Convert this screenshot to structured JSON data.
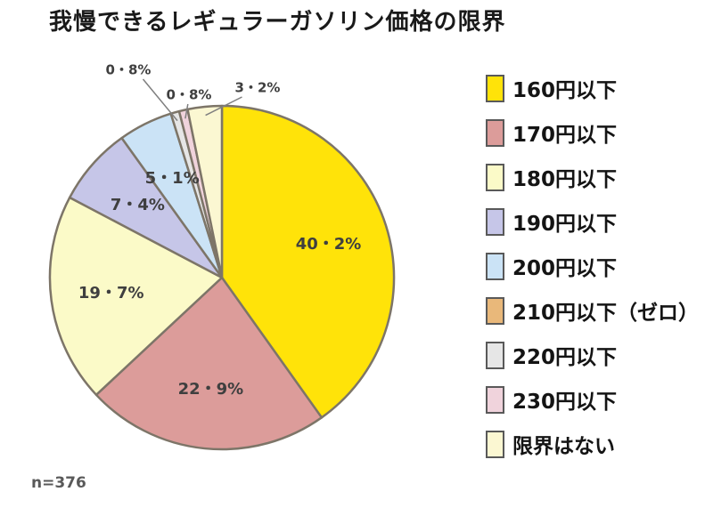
{
  "chart_data": {
    "type": "pie",
    "title": "我慢できるレギュラーガソリン価格の限界",
    "sample_label": "n=376",
    "legend_position": "right",
    "start_angle_deg": 0,
    "direction": "clockwise",
    "stroke_color": "#7d7568",
    "label_color": "#3f3f3f",
    "leader_line_color": "#7f7f7f",
    "slices": [
      {
        "label": "160円以下",
        "value": 40.2,
        "display": "40・2%",
        "color": "#ffe309"
      },
      {
        "label": "170円以下",
        "value": 22.9,
        "display": "22・9%",
        "color": "#dc9c9a"
      },
      {
        "label": "180円以下",
        "value": 19.7,
        "display": "19・7%",
        "color": "#fbfac8"
      },
      {
        "label": "190円以下",
        "value": 7.4,
        "display": "7・4%",
        "color": "#c6c6e8"
      },
      {
        "label": "200円以下",
        "value": 5.1,
        "display": "5・1%",
        "color": "#cbe3f6"
      },
      {
        "label": "210円以下（ゼロ）",
        "value": 0,
        "display": "",
        "color": "#e9b87a"
      },
      {
        "label": "220円以下",
        "value": 0.8,
        "display": "0・8%",
        "color": "#e6e6e6"
      },
      {
        "label": "230円以下",
        "value": 0.8,
        "display": "0・8%",
        "color": "#f0d3dc"
      },
      {
        "label": "限界はない",
        "value": 3.2,
        "display": "3・2%",
        "color": "#fbf7d2"
      }
    ]
  }
}
